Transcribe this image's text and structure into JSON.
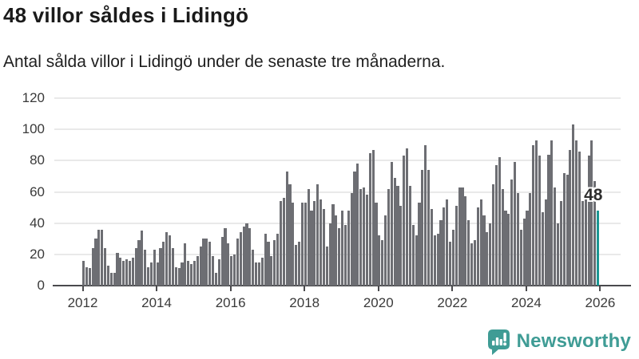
{
  "header": {
    "title": "48 villor såldes i Lidingö",
    "subtitle": "Antal sålda villor i Lidingö under de senaste tre månaderna."
  },
  "chart_data": {
    "type": "bar",
    "title": "48 villor såldes i Lidingö",
    "subtitle": "Antal sålda villor i Lidingö under de senaste tre månaderna.",
    "xlabel": "",
    "ylabel": "",
    "start_year": 2012,
    "start_month": 1,
    "months_per_year": 12,
    "ylim": [
      0,
      120
    ],
    "yticks": [
      0,
      20,
      40,
      60,
      80,
      100,
      120
    ],
    "xticks": [
      2012,
      2014,
      2016,
      2018,
      2020,
      2022,
      2024,
      2026
    ],
    "grid": true,
    "values": [
      16,
      12,
      11,
      24,
      30,
      36,
      36,
      24,
      13,
      8,
      8,
      21,
      18,
      16,
      17,
      16,
      18,
      24,
      29,
      35,
      23,
      12,
      15,
      23,
      15,
      24,
      28,
      34,
      32,
      24,
      12,
      11,
      15,
      27,
      16,
      14,
      16,
      19,
      25,
      30,
      30,
      28,
      19,
      8,
      17,
      31,
      37,
      27,
      19,
      20,
      30,
      34,
      38,
      40,
      37,
      23,
      15,
      15,
      18,
      33,
      28,
      19,
      29,
      33,
      54,
      56,
      73,
      65,
      53,
      26,
      28,
      53,
      53,
      62,
      48,
      54,
      65,
      55,
      49,
      25,
      40,
      52,
      45,
      37,
      48,
      39,
      48,
      59,
      73,
      78,
      62,
      63,
      58,
      85,
      87,
      53,
      32,
      29,
      45,
      62,
      79,
      69,
      64,
      51,
      83,
      88,
      64,
      39,
      32,
      53,
      74,
      90,
      74,
      49,
      32,
      33,
      42,
      50,
      55,
      28,
      36,
      51,
      63,
      63,
      57,
      42,
      27,
      29,
      50,
      55,
      45,
      34,
      40,
      65,
      77,
      82,
      62,
      48,
      46,
      68,
      79,
      59,
      36,
      43,
      48,
      59,
      90,
      93,
      83,
      47,
      55,
      84,
      93,
      63,
      40,
      54,
      72,
      71,
      87,
      103,
      93,
      86,
      54,
      59,
      83,
      93,
      67,
      48
    ],
    "highlight": {
      "index": 167,
      "value": 48,
      "label": "48"
    },
    "colors": {
      "bar": "#6d6e73",
      "highlight": "#1b9793",
      "grid": "#e9e9e9",
      "axis": "#4a4a4d",
      "tick_label": "#3a3a3a"
    },
    "legend": null
  },
  "footer": {
    "brand": "Newsworthy",
    "brand_color": "#3f9c95"
  }
}
